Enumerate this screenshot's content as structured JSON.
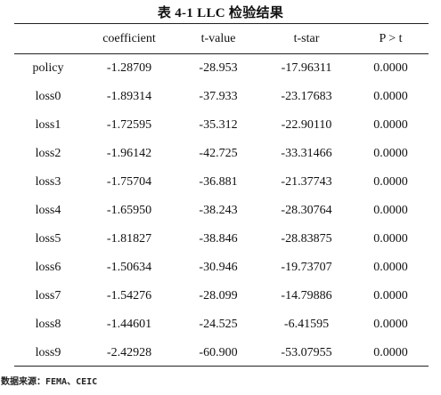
{
  "table": {
    "title": "表 4-1 LLC 检验结果",
    "columns": [
      "",
      "coefficient",
      "t-value",
      "t-star",
      "P > t"
    ],
    "rows": [
      {
        "label": "policy",
        "coefficient": "-1.28709",
        "t_value": "-28.953",
        "t_star": "-17.96311",
        "p": "0.0000"
      },
      {
        "label": "loss0",
        "coefficient": "-1.89314",
        "t_value": "-37.933",
        "t_star": "-23.17683",
        "p": "0.0000"
      },
      {
        "label": "loss1",
        "coefficient": "-1.72595",
        "t_value": "-35.312",
        "t_star": "-22.90110",
        "p": "0.0000"
      },
      {
        "label": "loss2",
        "coefficient": "-1.96142",
        "t_value": "-42.725",
        "t_star": "-33.31466",
        "p": "0.0000"
      },
      {
        "label": "loss3",
        "coefficient": "-1.75704",
        "t_value": "-36.881",
        "t_star": "-21.37743",
        "p": "0.0000"
      },
      {
        "label": "loss4",
        "coefficient": "-1.65950",
        "t_value": "-38.243",
        "t_star": "-28.30764",
        "p": "0.0000"
      },
      {
        "label": "loss5",
        "coefficient": "-1.81827",
        "t_value": "-38.846",
        "t_star": "-28.83875",
        "p": "0.0000"
      },
      {
        "label": "loss6",
        "coefficient": "-1.50634",
        "t_value": "-30.946",
        "t_star": "-19.73707",
        "p": "0.0000"
      },
      {
        "label": "loss7",
        "coefficient": "-1.54276",
        "t_value": "-28.099",
        "t_star": "-14.79886",
        "p": "0.0000"
      },
      {
        "label": "loss8",
        "coefficient": "-1.44601",
        "t_value": "-24.525",
        "t_star": "-6.41595",
        "p": "0.0000"
      },
      {
        "label": "loss9",
        "coefficient": "-2.42928",
        "t_value": "-60.900",
        "t_star": "-53.07955",
        "p": "0.0000"
      }
    ]
  },
  "source_note": "数据来源：FEMA、CEIC"
}
